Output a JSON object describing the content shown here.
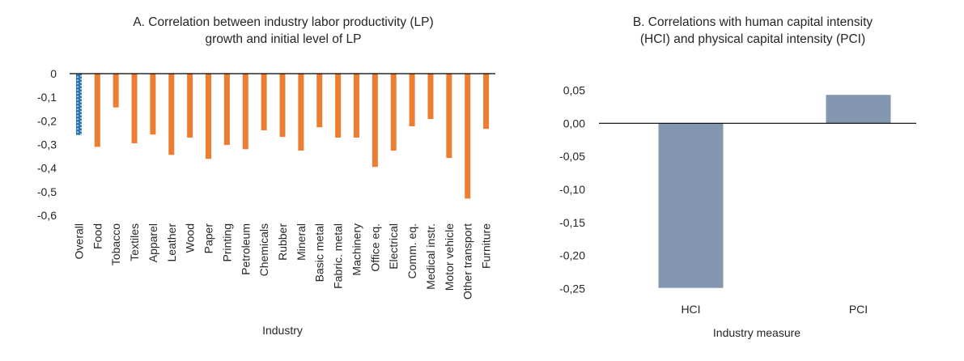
{
  "chart_data": [
    {
      "id": "A",
      "type": "bar",
      "title": "A. Correlation between industry labor productivity (LP) growth and initial level of LP",
      "title_lines": [
        "A. Correlation between industry labor productivity (LP)",
        "growth and initial level of LP"
      ],
      "xlabel": "Industry",
      "ylabel": "",
      "ylim": [
        -0.6,
        0
      ],
      "yticks": [
        0,
        -0.1,
        -0.2,
        -0.3,
        -0.4,
        -0.5,
        -0.6
      ],
      "ytick_labels": [
        "0",
        "-0,1",
        "-0,2",
        "-0,3",
        "-0,4",
        "-0,5",
        "-0,6"
      ],
      "grid": false,
      "legend": "none",
      "categories": [
        "Overall",
        "Food",
        "Tobacco",
        "Textiles",
        "Apparel",
        "Leather",
        "Wood",
        "Paper",
        "Printing",
        "Petroleum",
        "Chemicals",
        "Rubber",
        "Mineral",
        "Basic metal",
        "Fabric. metal",
        "Machinery",
        "Office eq.",
        "Electrical",
        "Comm. eq.",
        "Medical instr.",
        "Motor vehicle",
        "Other transport",
        "Furniture"
      ],
      "values": [
        -0.26,
        -0.31,
        -0.143,
        -0.295,
        -0.258,
        -0.344,
        -0.271,
        -0.361,
        -0.302,
        -0.32,
        -0.24,
        -0.268,
        -0.326,
        -0.227,
        -0.271,
        -0.271,
        -0.395,
        -0.326,
        -0.223,
        -0.192,
        -0.357,
        -0.529,
        -0.234
      ],
      "highlight_category": "Overall",
      "colors": {
        "bar": "#ED7D31",
        "highlight": "#2E75B6",
        "highlight_alt": "#BDD7EE",
        "axis": "#000000"
      }
    },
    {
      "id": "B",
      "type": "bar",
      "title": "B. Correlations with human capital intensity (HCI) and physical capital intensity (PCI)",
      "title_lines": [
        "B. Correlations with human capital intensity",
        "(HCI) and physical capital intensity (PCI)"
      ],
      "xlabel": "Industry measure",
      "ylabel": "",
      "ylim": [
        -0.25,
        0.05
      ],
      "yticks": [
        0.05,
        0,
        -0.05,
        -0.1,
        -0.15,
        -0.2,
        -0.25
      ],
      "ytick_labels": [
        "0,05",
        "0,00",
        "-0,05",
        "-0,10",
        "-0,15",
        "-0,20",
        "-0,25"
      ],
      "grid": false,
      "legend": "none",
      "categories": [
        "HCI",
        "PCI"
      ],
      "values": [
        -0.249,
        0.043
      ],
      "colors": {
        "bar": "#8497B0",
        "axis": "#000000"
      }
    }
  ]
}
